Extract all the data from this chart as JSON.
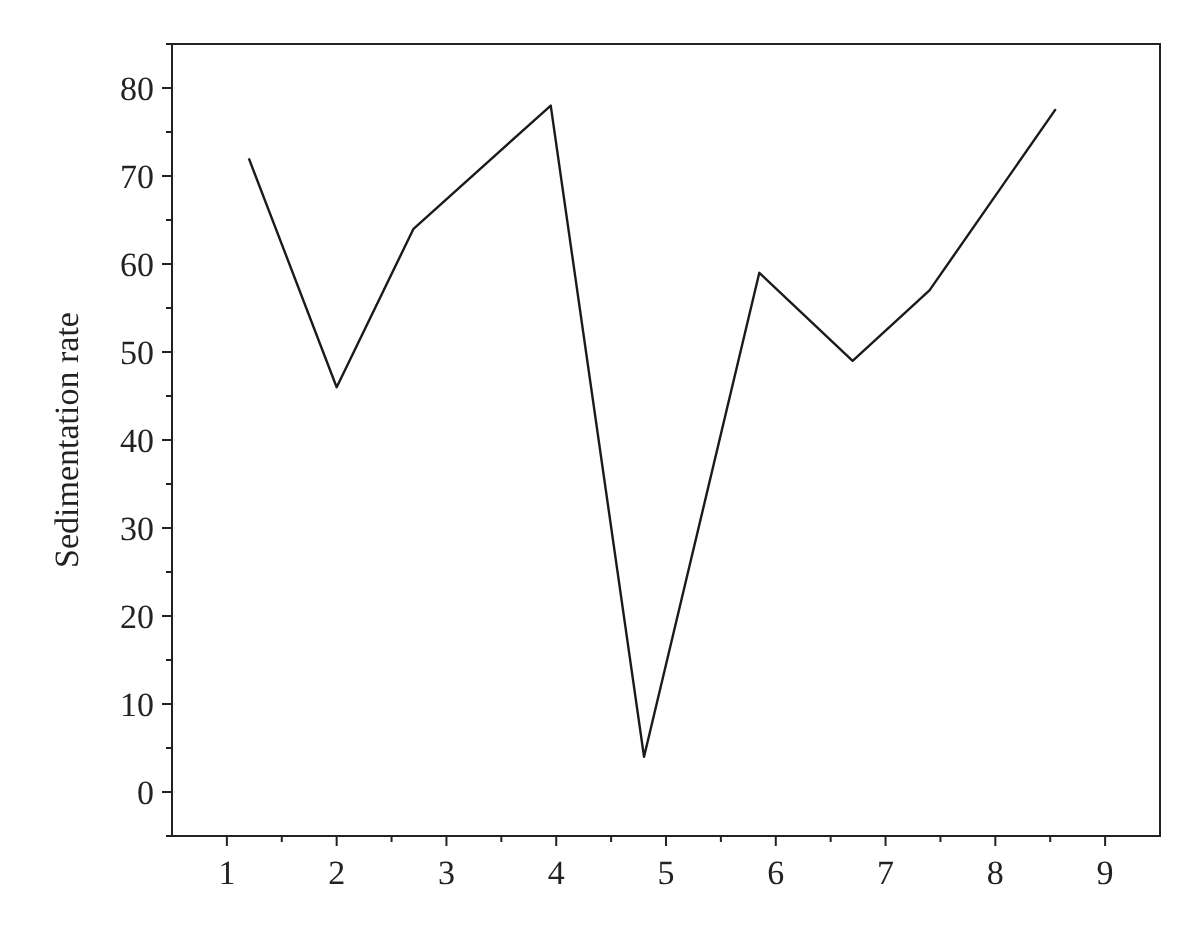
{
  "chart_data": {
    "type": "line",
    "ylabel": "Sedimentation rate",
    "x": [
      1.2,
      2,
      2.7,
      3.95,
      4.8,
      5.85,
      6.7,
      7.4,
      8.55
    ],
    "series": [
      {
        "color": "#1a1a1a",
        "values": [
          72,
          46,
          64,
          78,
          4,
          59,
          49,
          57,
          77.6
        ]
      }
    ],
    "xlim": [
      0.5,
      9.5
    ],
    "ylim": [
      -5,
      85
    ],
    "xticks": [
      1,
      {
        "value": 1.5,
        "label": null
      },
      2,
      {
        "value": 2.5,
        "label": null
      },
      3,
      {
        "value": 3.5,
        "label": null
      },
      4,
      {
        "value": 4.5,
        "label": null
      },
      5,
      {
        "value": 5.5,
        "label": null
      },
      6,
      {
        "value": 6.5,
        "label": null
      },
      7,
      {
        "value": 7.5,
        "label": null
      },
      8,
      {
        "value": 8.5,
        "label": null
      },
      9
    ],
    "yticks": [
      {
        "value": -5,
        "label": null
      },
      0,
      {
        "value": 5,
        "label": null
      },
      10,
      {
        "value": 15,
        "label": null
      },
      20,
      {
        "value": 25,
        "label": null
      },
      30,
      {
        "value": 35,
        "label": null
      },
      40,
      {
        "value": 45,
        "label": null
      },
      50,
      {
        "value": 55,
        "label": null
      },
      60,
      {
        "value": 65,
        "label": null
      },
      70,
      {
        "value": 75,
        "label": null
      },
      80,
      {
        "value": 85,
        "label": null
      }
    ],
    "grid": false,
    "marker": "none",
    "line_style": "solid"
  }
}
